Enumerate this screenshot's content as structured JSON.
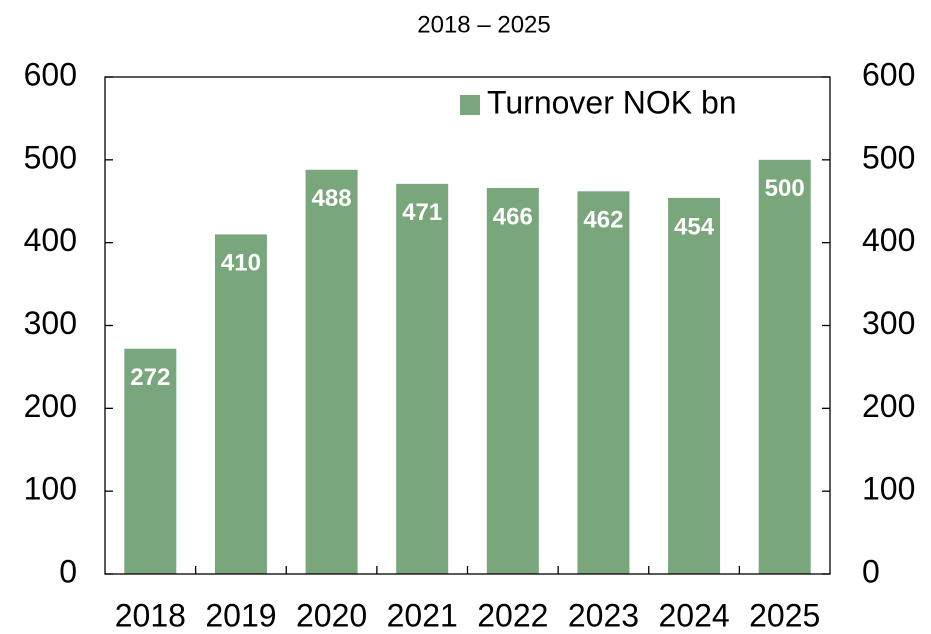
{
  "chart_data": {
    "type": "bar",
    "title": "2018 – 2025",
    "categories": [
      "2018",
      "2019",
      "2020",
      "2021",
      "2022",
      "2023",
      "2024",
      "2025"
    ],
    "series": [
      {
        "name": "Turnover NOK bn",
        "color": "#7aa67c",
        "values": [
          272,
          410,
          488,
          471,
          466,
          462,
          454,
          500
        ]
      }
    ],
    "ylim": [
      0,
      600
    ],
    "yticks": [
      0,
      100,
      200,
      300,
      400,
      500,
      600
    ],
    "y2lim": [
      0,
      600
    ],
    "y2ticks": [
      0,
      100,
      200,
      300,
      400,
      500,
      600
    ],
    "legend": "upper right"
  }
}
